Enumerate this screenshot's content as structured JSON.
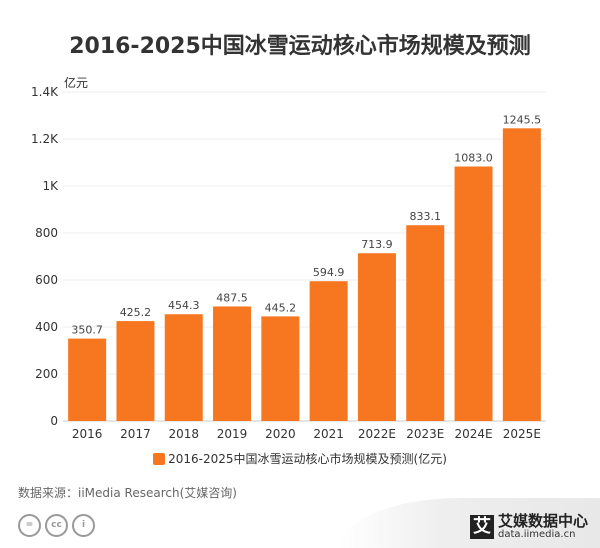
{
  "chart_data": {
    "type": "bar",
    "title": "2016-2025中国冰雪运动核心市场规模及预测",
    "ylabel": "亿元",
    "categories": [
      "2016",
      "2017",
      "2018",
      "2019",
      "2020",
      "2021",
      "2022E",
      "2023E",
      "2024E",
      "2025E"
    ],
    "series": [
      {
        "name": "2016-2025中国冰雪运动核心市场规模及预测(亿元)",
        "values": [
          350.7,
          425.2,
          454.3,
          487.5,
          445.2,
          594.9,
          713.9,
          833.1,
          1083.0,
          1245.5
        ],
        "labels": [
          "350.7",
          "425.2",
          "454.3",
          "487.5",
          "445.2",
          "594.9",
          "713.9",
          "833.1",
          "1083.0",
          "1245.5"
        ],
        "color": "#F77620"
      }
    ],
    "ylim": [
      0,
      1400
    ],
    "yticks": [
      0,
      200,
      400,
      600,
      800,
      1000,
      1200,
      1400
    ],
    "ytick_labels": [
      "0",
      "200",
      "400",
      "600",
      "800",
      "1K",
      "1.2K",
      "1.4K"
    ],
    "grid": true,
    "legend": "bottom"
  },
  "source": "数据来源：iiMedia Research(艾媒咨询)",
  "watermark": {
    "mark": "艾",
    "name": "艾媒数据中心",
    "url": "data.iimedia.cn"
  },
  "license_icons": [
    "nd-icon",
    "cc-icon",
    "by-icon"
  ]
}
